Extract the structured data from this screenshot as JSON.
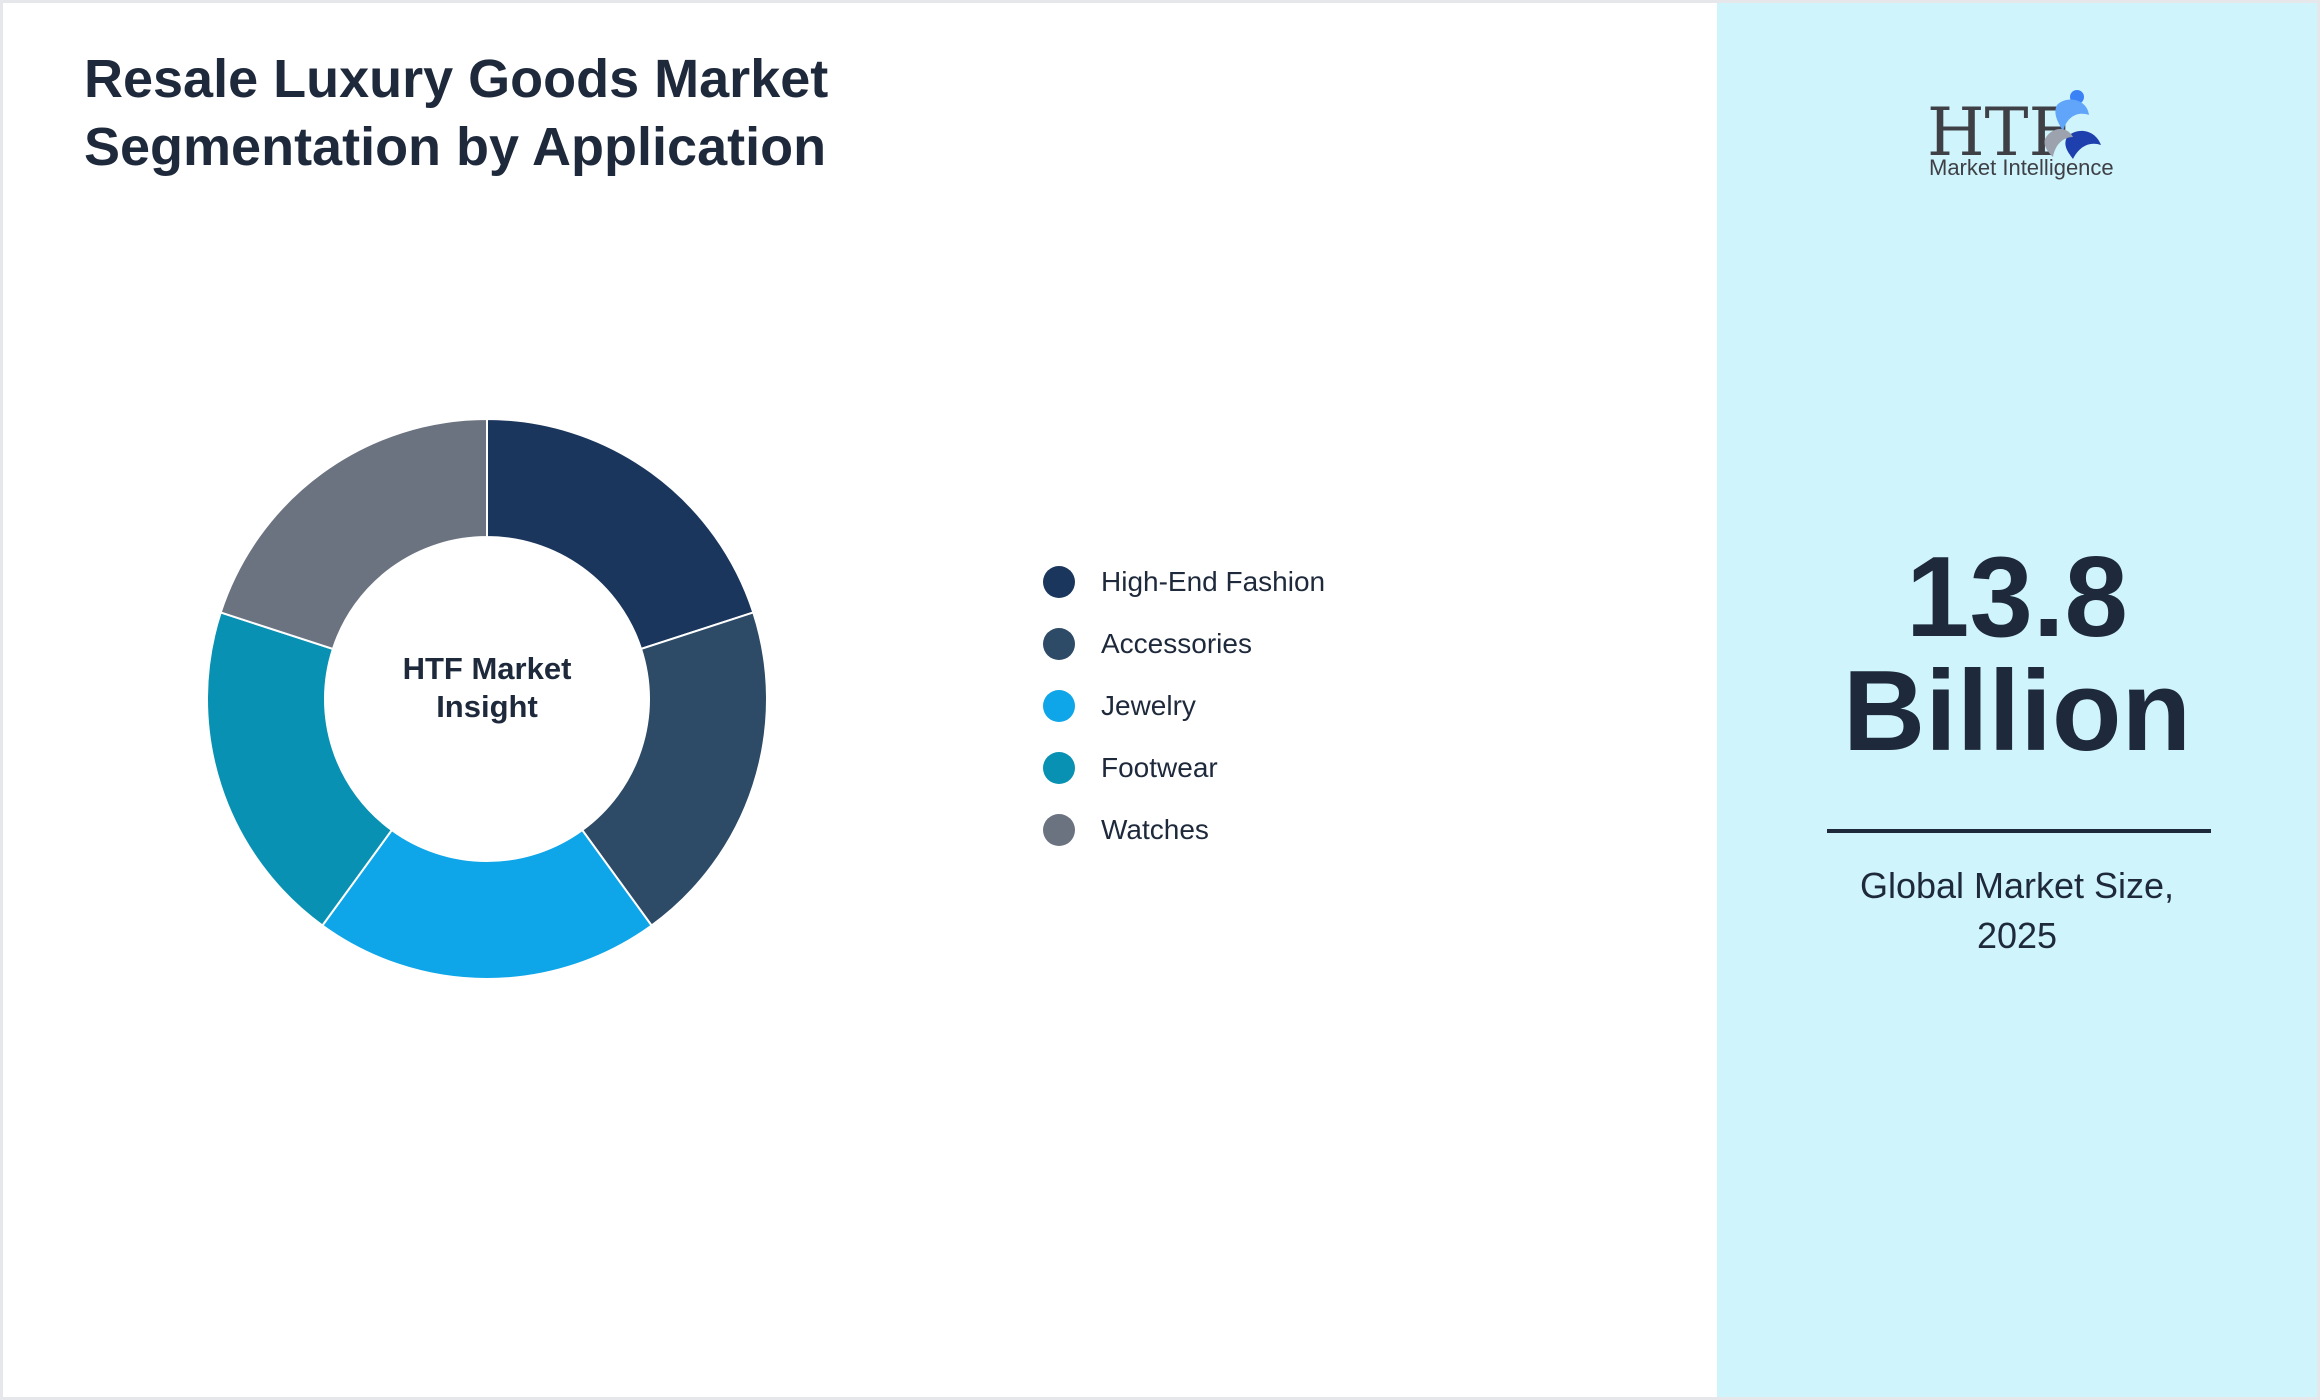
{
  "chart_data": {
    "type": "pie",
    "variant": "donut",
    "title": "Resale Luxury Goods Market Segmentation by Application",
    "title_lines": [
      "Resale Luxury Goods Market",
      "Segmentation by Application"
    ],
    "center_label_lines": [
      "HTF Market",
      "Insight"
    ],
    "categories": [
      "High-End Fashion",
      "Accessories",
      "Jewelry",
      "Footwear",
      "Watches"
    ],
    "values": [
      20,
      20,
      20,
      20,
      20
    ],
    "colors": [
      "#1b365d",
      "#2d4a66",
      "#0ea5e9",
      "#0891b2",
      "#6b7280"
    ],
    "legend_position": "right",
    "grid": false
  },
  "brand": {
    "logo_text": "HTF",
    "logo_subtitle": "Market Intelligence"
  },
  "highlight": {
    "value_lines": [
      "13.8",
      "Billion"
    ],
    "caption_lines": [
      "Global Market Size,",
      "2025"
    ]
  },
  "colors": {
    "panel_background": "#cff4fc",
    "text": "#1e293b"
  }
}
